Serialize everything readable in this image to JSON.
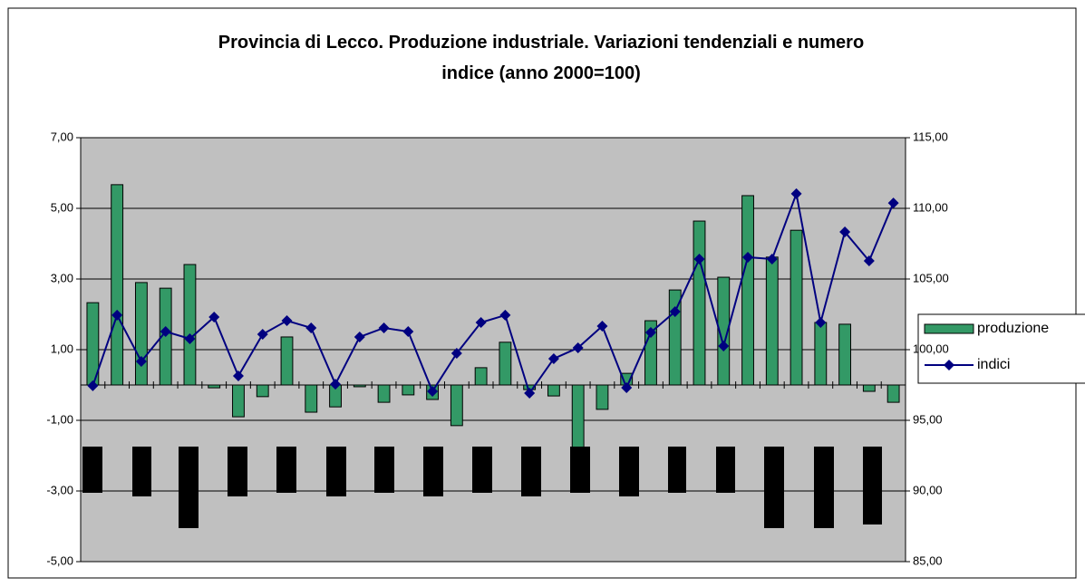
{
  "chart_data": {
    "type": "bar_line",
    "title": "Provincia di Lecco. Produzione industriale. Variazioni tendenziali e numero indice (anno 2000=100)",
    "categories": [
      null,
      null,
      null,
      null,
      null,
      null,
      null,
      null,
      null,
      null,
      null,
      null,
      null,
      null,
      null,
      null,
      null,
      null,
      null,
      null,
      null,
      null,
      null,
      null,
      null,
      null,
      null,
      null,
      null,
      null,
      null,
      null,
      null,
      null
    ],
    "series": [
      {
        "name": "produzione",
        "type": "bar",
        "color": "#339966",
        "values": [
          2.33,
          5.67,
          2.9,
          2.74,
          3.41,
          -0.08,
          -0.9,
          -0.33,
          1.36,
          -0.77,
          -0.62,
          -0.05,
          -0.49,
          -0.28,
          -0.41,
          -1.15,
          0.49,
          1.21,
          -0.13,
          -0.31,
          -1.79,
          -0.69,
          0.33,
          1.82,
          2.69,
          4.64,
          3.05,
          5.36,
          3.62,
          4.38,
          1.77,
          1.72,
          -0.18,
          -0.49
        ]
      },
      {
        "name": "indici",
        "type": "line",
        "axis": "y2",
        "color": "#000080",
        "values": [
          97.44,
          102.44,
          99.17,
          101.28,
          100.77,
          102.31,
          98.14,
          101.09,
          102.05,
          101.54,
          97.56,
          100.9,
          101.54,
          101.28,
          97.05,
          99.74,
          101.92,
          102.44,
          96.92,
          99.36,
          100.13,
          101.67,
          97.31,
          101.22,
          102.69,
          106.41,
          100.26,
          106.54,
          106.41,
          111.03,
          101.92,
          108.33,
          106.28,
          110.38
        ]
      }
    ],
    "ylim": [
      -5,
      7
    ],
    "yticks": [
      {
        "value": -5,
        "label": "-5,00"
      },
      {
        "value": -3,
        "label": "-3,00"
      },
      {
        "value": -1,
        "label": "-1,00"
      },
      {
        "value": 1,
        "label": "1,00"
      },
      {
        "value": 3,
        "label": "3,00"
      },
      {
        "value": 5,
        "label": "5,00"
      },
      {
        "value": 7,
        "label": "7,00"
      }
    ],
    "y2lim": [
      85,
      115
    ],
    "y2ticks": [
      {
        "value": 85,
        "label": "85,00"
      },
      {
        "value": 90,
        "label": "90,00"
      },
      {
        "value": 95,
        "label": "95,00"
      },
      {
        "value": 100,
        "label": "100,00"
      },
      {
        "value": 105,
        "label": "105,00"
      },
      {
        "value": 110,
        "label": "110,00"
      },
      {
        "value": 115,
        "label": "115,00"
      }
    ],
    "grid": true,
    "legend": "right"
  }
}
